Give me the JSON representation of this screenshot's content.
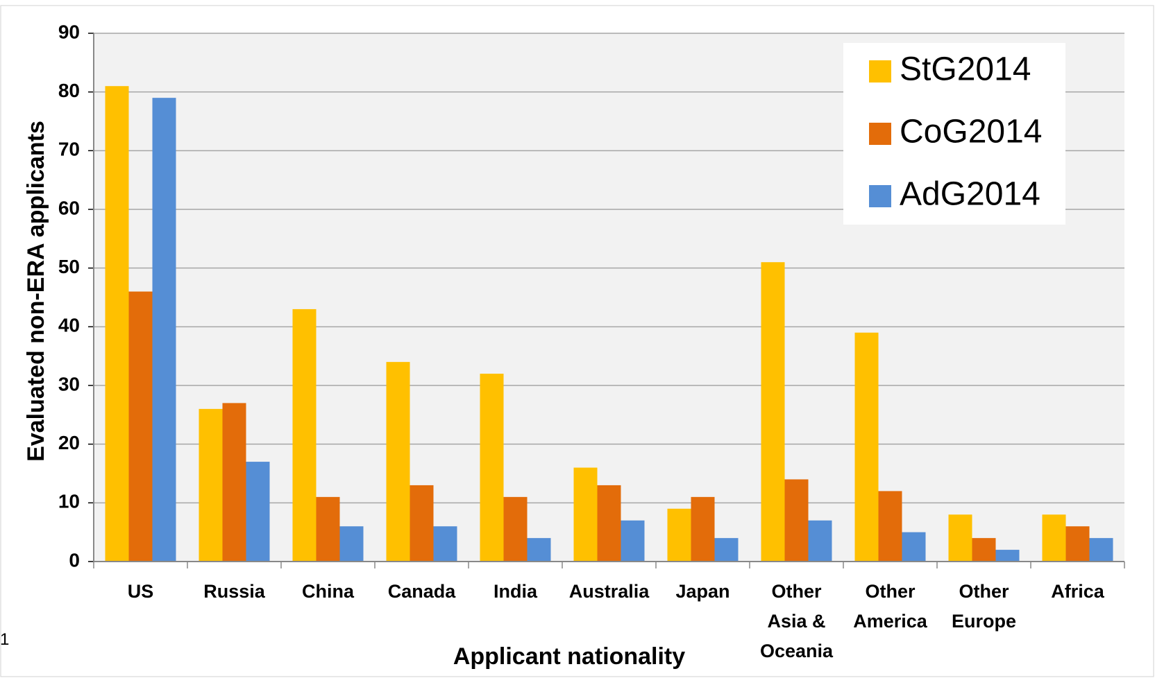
{
  "chart_data": {
    "type": "bar",
    "title": "",
    "xlabel": "Applicant nationality",
    "ylabel": "Evaluated non-ERA applicants",
    "ylim": [
      0,
      90
    ],
    "yticks": [
      "0",
      "10",
      "20",
      "30",
      "40",
      "50",
      "60",
      "70",
      "80",
      "90"
    ],
    "grid": true,
    "legend_position": "top-right",
    "categories": [
      [
        "US"
      ],
      [
        "Russia"
      ],
      [
        "China"
      ],
      [
        "Canada"
      ],
      [
        "India"
      ],
      [
        "Australia"
      ],
      [
        "Japan"
      ],
      [
        "Other",
        "Asia &",
        "Oceania"
      ],
      [
        "Other",
        "America"
      ],
      [
        "Other",
        "Europe"
      ],
      [
        "Africa"
      ]
    ],
    "series": [
      {
        "name": "StG2014",
        "color": "#FFC000",
        "values": [
          81,
          26,
          43,
          34,
          32,
          16,
          9,
          51,
          39,
          8,
          8
        ]
      },
      {
        "name": "CoG2014",
        "color": "#E36C0A",
        "values": [
          46,
          27,
          11,
          13,
          11,
          13,
          11,
          14,
          12,
          4,
          6
        ]
      },
      {
        "name": "AdG2014",
        "color": "#558ED5",
        "values": [
          79,
          17,
          6,
          6,
          4,
          7,
          4,
          7,
          5,
          2,
          4
        ]
      }
    ],
    "plot_background": "#F2F2F2",
    "gridline_color": "#A6A6A6"
  },
  "page": {
    "stray_mark": "1"
  }
}
